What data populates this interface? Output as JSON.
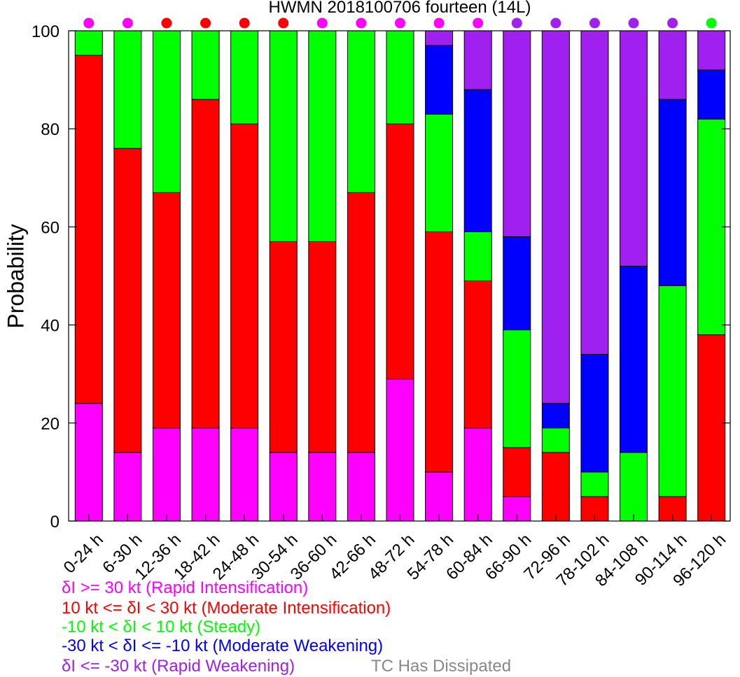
{
  "chart_data": {
    "type": "bar",
    "stacked": true,
    "title": "HWMN 2018100706 fourteen (14L)",
    "ylabel": "Probability",
    "ylim": [
      0,
      100
    ],
    "yticks": [
      0,
      20,
      40,
      60,
      80,
      100
    ],
    "categories": [
      "0-24 h",
      "6-30 h",
      "12-36 h",
      "18-42 h",
      "24-48 h",
      "30-54 h",
      "36-60 h",
      "42-66 h",
      "48-72 h",
      "54-78 h",
      "60-84 h",
      "66-90 h",
      "72-96 h",
      "78-102 h",
      "84-108 h",
      "90-114 h",
      "96-120 h"
    ],
    "series": [
      {
        "name": "δI >= 30 kt (Rapid Intensification)",
        "color": "#ff00ff",
        "values": [
          24,
          14,
          19,
          19,
          19,
          14,
          14,
          14,
          29,
          10,
          19,
          5,
          0,
          0,
          0,
          0,
          0
        ]
      },
      {
        "name": "10 kt <= δI < 30 kt (Moderate Intensification)",
        "color": "#ff0000",
        "values": [
          71,
          62,
          48,
          67,
          62,
          43,
          43,
          53,
          52,
          49,
          30,
          10,
          14,
          5,
          0,
          5,
          38
        ]
      },
      {
        "name": "-10 kt < δI < 10 kt (Steady)",
        "color": "#00ff00",
        "values": [
          5,
          24,
          33,
          14,
          19,
          43,
          43,
          33,
          19,
          24,
          10,
          24,
          5,
          5,
          14,
          43,
          44
        ]
      },
      {
        "name": "-30 kt < δI <= -10 kt (Moderate Weakening)",
        "color": "#0000ff",
        "values": [
          0,
          0,
          0,
          0,
          0,
          0,
          0,
          0,
          0,
          14,
          29,
          19,
          5,
          24,
          38,
          38,
          10
        ]
      },
      {
        "name": "δI <= -30 kt (Rapid Weakening)",
        "color": "#a020f0",
        "values": [
          0,
          0,
          0,
          0,
          0,
          0,
          0,
          0,
          0,
          3,
          12,
          42,
          76,
          66,
          48,
          14,
          8
        ]
      }
    ],
    "dissipated_label": "TC Has Dissipated",
    "dissipated_color": "#888888",
    "dot_colors": [
      "#ff00ff",
      "#ff00ff",
      "#ff0000",
      "#ff0000",
      "#ff0000",
      "#ff0000",
      "#ff00ff",
      "#ff00ff",
      "#ff00ff",
      "#ff00ff",
      "#ff00ff",
      "#a020f0",
      "#a020f0",
      "#a020f0",
      "#a020f0",
      "#a020f0",
      "#00ff00"
    ],
    "legend_position": "bottom-left",
    "grid": false
  }
}
